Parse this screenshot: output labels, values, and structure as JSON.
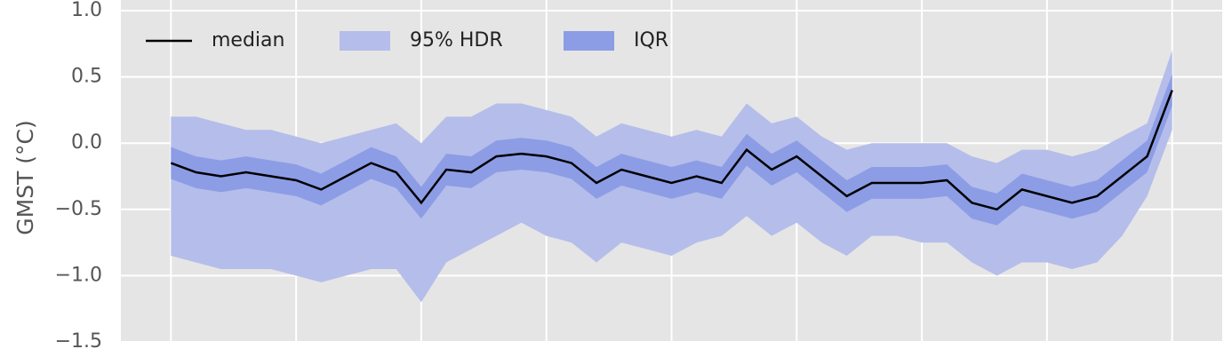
{
  "chart_data": {
    "type": "line",
    "ylabel": "GMST (°C)",
    "x": [
      0,
      50,
      100,
      150,
      200,
      250,
      300,
      350,
      400,
      450,
      500,
      550,
      600,
      650,
      700,
      750,
      800,
      850,
      900,
      950,
      1000,
      1050,
      1100,
      1150,
      1200,
      1250,
      1300,
      1350,
      1400,
      1450,
      1500,
      1550,
      1600,
      1650,
      1700,
      1750,
      1800,
      1850,
      1900,
      1950,
      2000
    ],
    "series": [
      {
        "name": "median",
        "color": "#000000",
        "values": [
          -0.15,
          -0.22,
          -0.25,
          -0.22,
          -0.25,
          -0.28,
          -0.35,
          -0.25,
          -0.15,
          -0.22,
          -0.45,
          -0.2,
          -0.22,
          -0.1,
          -0.08,
          -0.1,
          -0.15,
          -0.3,
          -0.2,
          -0.25,
          -0.3,
          -0.25,
          -0.3,
          -0.05,
          -0.2,
          -0.1,
          -0.25,
          -0.4,
          -0.3,
          -0.3,
          -0.3,
          -0.28,
          -0.45,
          -0.5,
          -0.35,
          -0.4,
          -0.45,
          -0.4,
          -0.25,
          -0.1,
          0.4
        ]
      }
    ],
    "bands": [
      {
        "name": "95% HDR",
        "color": "#b5bdea",
        "low": [
          -0.85,
          -0.9,
          -0.95,
          -0.95,
          -0.95,
          -1.0,
          -1.05,
          -1.0,
          -0.95,
          -0.95,
          -1.2,
          -0.9,
          -0.8,
          -0.7,
          -0.6,
          -0.7,
          -0.75,
          -0.9,
          -0.75,
          -0.8,
          -0.85,
          -0.75,
          -0.7,
          -0.55,
          -0.7,
          -0.6,
          -0.75,
          -0.85,
          -0.7,
          -0.7,
          -0.75,
          -0.75,
          -0.9,
          -1.0,
          -0.9,
          -0.9,
          -0.95,
          -0.9,
          -0.7,
          -0.4,
          0.1
        ],
        "high": [
          0.2,
          0.2,
          0.15,
          0.1,
          0.1,
          0.05,
          0.0,
          0.05,
          0.1,
          0.15,
          0.0,
          0.2,
          0.2,
          0.3,
          0.3,
          0.25,
          0.2,
          0.05,
          0.15,
          0.1,
          0.05,
          0.1,
          0.05,
          0.3,
          0.15,
          0.2,
          0.05,
          -0.05,
          0.0,
          0.0,
          0.0,
          0.0,
          -0.1,
          -0.15,
          -0.05,
          -0.05,
          -0.1,
          -0.05,
          0.05,
          0.15,
          0.7
        ]
      },
      {
        "name": "IQR",
        "color": "#8c9de5",
        "low": [
          -0.27,
          -0.34,
          -0.37,
          -0.34,
          -0.37,
          -0.4,
          -0.47,
          -0.37,
          -0.27,
          -0.34,
          -0.57,
          -0.32,
          -0.34,
          -0.22,
          -0.2,
          -0.22,
          -0.27,
          -0.42,
          -0.32,
          -0.37,
          -0.42,
          -0.37,
          -0.42,
          -0.17,
          -0.32,
          -0.22,
          -0.37,
          -0.52,
          -0.42,
          -0.42,
          -0.42,
          -0.4,
          -0.57,
          -0.62,
          -0.47,
          -0.52,
          -0.57,
          -0.52,
          -0.37,
          -0.22,
          0.28
        ],
        "high": [
          -0.03,
          -0.1,
          -0.13,
          -0.1,
          -0.13,
          -0.16,
          -0.23,
          -0.13,
          -0.03,
          -0.1,
          -0.33,
          -0.08,
          -0.1,
          0.02,
          0.04,
          0.02,
          -0.03,
          -0.18,
          -0.08,
          -0.13,
          -0.18,
          -0.13,
          -0.18,
          0.07,
          -0.08,
          0.02,
          -0.13,
          -0.28,
          -0.18,
          -0.18,
          -0.18,
          -0.16,
          -0.33,
          -0.38,
          -0.23,
          -0.28,
          -0.33,
          -0.28,
          -0.13,
          0.02,
          0.52
        ]
      }
    ],
    "xlim": [
      -100,
      2100
    ],
    "xticks": [
      0,
      250,
      500,
      750,
      1000,
      1250,
      1500,
      1750,
      2000
    ],
    "ylim": [
      -1.5,
      1.0
    ],
    "yticks": [
      {
        "value": -1.5,
        "label": "−1.5"
      },
      {
        "value": -1.0,
        "label": "−1.0"
      },
      {
        "value": -0.5,
        "label": "−0.5"
      },
      {
        "value": 0.0,
        "label": "0.0"
      },
      0.5,
      {
        "value": 1.0,
        "label": "1.0"
      }
    ],
    "grid": true,
    "background": "#e5e5e5",
    "legend": "upper-left"
  }
}
